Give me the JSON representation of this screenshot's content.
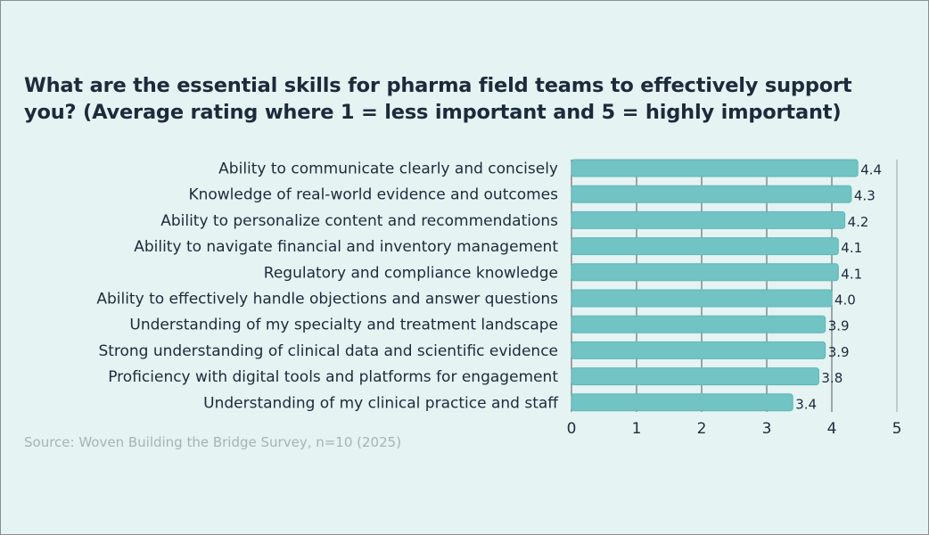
{
  "chart_data": {
    "type": "bar",
    "orientation": "horizontal",
    "title": "What are the essential skills for pharma field teams to effectively support you? (Average rating where 1 = less important and 5 = highly important)",
    "source": "Source: Woven Building the Bridge Survey, n=10 (2025)",
    "categories": [
      "Ability to communicate clearly and concisely",
      "Knowledge of real-world evidence and outcomes",
      "Ability to personalize content and recommendations",
      "Ability to navigate financial and inventory management",
      "Regulatory and compliance knowledge",
      "Ability to effectively handle objections and answer questions",
      "Understanding of my specialty and treatment landscape",
      "Strong understanding of clinical data and scientific evidence",
      "Proficiency with digital tools and platforms for engagement",
      "Understanding of my clinical practice and staff"
    ],
    "values": [
      4.4,
      4.3,
      4.2,
      4.1,
      4.1,
      4.0,
      3.9,
      3.9,
      3.8,
      3.4
    ],
    "value_labels": [
      "4.4",
      "4.3",
      "4.2",
      "4.1",
      "4.1",
      "4.0",
      "3.9",
      "3.9",
      "3.8",
      "3.4"
    ],
    "xlim": [
      0,
      5
    ],
    "xticks": [
      "0",
      "1",
      "2",
      "3",
      "4",
      "5"
    ],
    "grid": true,
    "colors": {
      "bar": "#72c3c3",
      "bar_edge": "#5fb8b8",
      "grid": "#6b7072",
      "background": "#e5f3f3",
      "text": "#1c2b3b"
    }
  }
}
